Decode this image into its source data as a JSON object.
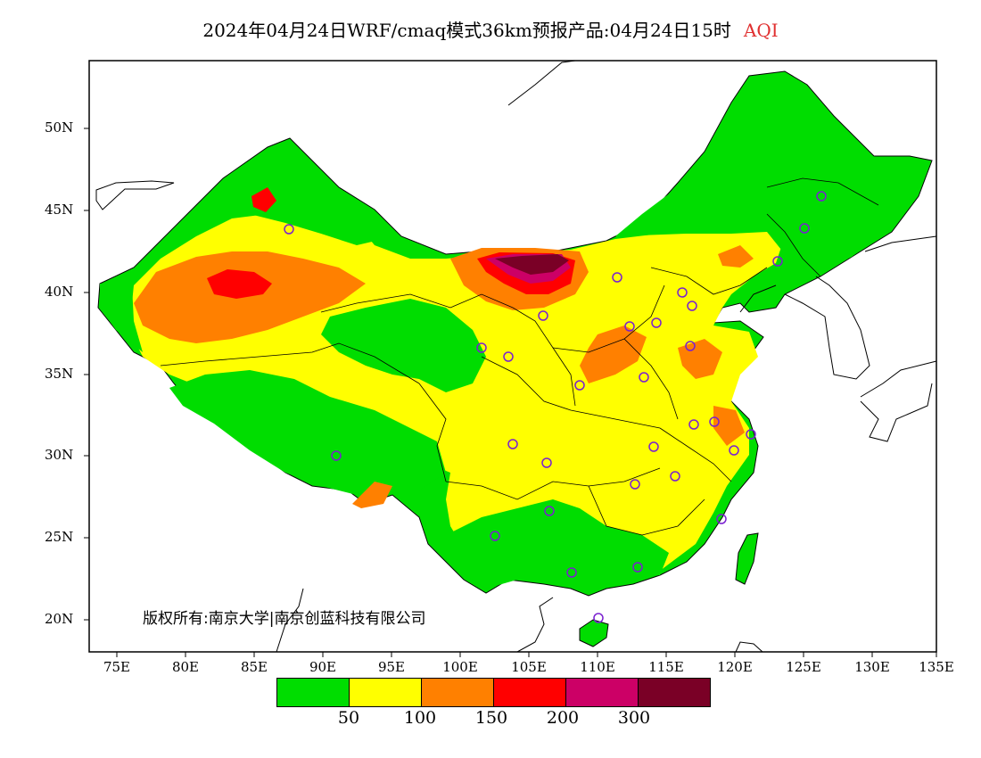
{
  "header": {
    "title": "2024年04月24日WRF/cmaq模式36km预报产品:04月24日15时",
    "pollutant": "AQI",
    "pollutant_color": "#e03030"
  },
  "axes": {
    "latitude_labels": [
      "50N",
      "45N",
      "40N",
      "35N",
      "30N",
      "25N",
      "20N"
    ],
    "longitude_labels": [
      "75E",
      "80E",
      "85E",
      "90E",
      "95E",
      "100E",
      "105E",
      "110E",
      "115E",
      "120E",
      "125E",
      "130E",
      "135E"
    ]
  },
  "copyright": "版权所有:南京大学|南京创蓝科技有限公司",
  "legend": {
    "colors": [
      "#00dd00",
      "#ffff00",
      "#ff8000",
      "#ff0000",
      "#cc0066",
      "#7a0026"
    ],
    "thresholds": [
      "50",
      "100",
      "150",
      "200",
      "300"
    ]
  },
  "map_colors": {
    "good": "#00dd00",
    "moderate": "#ffff00",
    "sensitive": "#ff8000",
    "unhealthy": "#ff0000",
    "very_unhealthy": "#cc0066",
    "hazardous": "#7a0026",
    "station_marker": "#7a20d0"
  }
}
